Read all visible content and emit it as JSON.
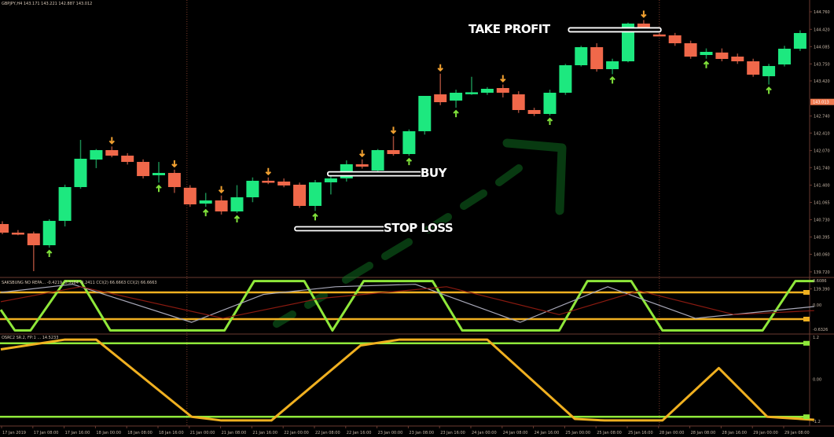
{
  "window": {
    "symbol_header": "GBPJPY,H4  143.171 143.221 142.887 143.012",
    "indicator1_header": "SAKSBUNG NO REPA... -0.4219 -0.3184 -0.2411  CCI(2) 66.6663  CCI(2) 66.6663",
    "indicator2_header": "OSRC2 SR.2, FP:1 ... 14.5233"
  },
  "annotations": {
    "take_profit": "TAKE PROFIT",
    "buy": "BUY",
    "stop_loss": "STOP LOSS"
  },
  "colors": {
    "bull": "#1de87f",
    "bear": "#f0684a",
    "down_arrow": "#f0a030",
    "up_arrow": "#7fe03a",
    "osc_line": "#8fe83a",
    "level_line": "#f0b020",
    "grid_sep": "#7a3a2a",
    "axis": "#6a3a30",
    "price_tag": "#f07a50"
  },
  "chart_data": [
    {
      "type": "candlestick",
      "title": "",
      "price_axis_ticks": [
        "144.760",
        "144.420",
        "144.085",
        "143.750",
        "143.420",
        "142.740",
        "142.410",
        "142.070",
        "141.740",
        "141.400",
        "141.065",
        "140.730",
        "140.395",
        "140.060",
        "139.720",
        "139.390"
      ],
      "current_price": "143.013",
      "time_axis_ticks": [
        "17 Jan 2019",
        "17 Jan 08:00",
        "17 Jan 16:00",
        "18 Jan 00:00",
        "18 Jan 08:00",
        "18 Jan 16:00",
        "21 Jan 00:00",
        "21 Jan 08:00",
        "21 Jan 16:00",
        "22 Jan 00:00",
        "22 Jan 08:00",
        "22 Jan 16:00",
        "23 Jan 00:00",
        "23 Jan 08:00",
        "23 Jan 16:00",
        "24 Jan 00:00",
        "24 Jan 08:00",
        "24 Jan 16:00",
        "25 Jan 00:00",
        "25 Jan 08:00",
        "25 Jan 16:00",
        "28 Jan 00:00",
        "28 Jan 08:00",
        "28 Jan 16:00",
        "29 Jan 00:00",
        "29 Jan 08:00"
      ],
      "ohlc": [
        [
          140.647,
          140.7,
          140.45,
          140.48
        ],
        [
          140.48,
          140.53,
          140.43,
          140.47
        ],
        [
          140.465,
          140.5,
          139.734,
          140.236
        ],
        [
          140.236,
          140.74,
          140.19,
          140.708
        ],
        [
          140.708,
          141.41,
          140.6,
          141.363
        ],
        [
          141.363,
          142.277,
          141.33,
          141.912
        ],
        [
          141.896,
          142.1,
          141.73,
          142.079
        ],
        [
          142.079,
          142.15,
          141.94,
          141.972
        ],
        [
          141.972,
          142.02,
          141.8,
          141.851
        ],
        [
          141.851,
          141.9,
          141.53,
          141.576
        ],
        [
          141.592,
          141.85,
          141.45,
          141.637
        ],
        [
          141.637,
          141.7,
          141.25,
          141.363
        ],
        [
          141.35,
          141.4,
          140.98,
          141.028
        ],
        [
          141.043,
          141.25,
          140.98,
          141.104
        ],
        [
          141.104,
          141.2,
          140.83,
          140.891
        ],
        [
          140.891,
          141.4,
          140.86,
          141.165
        ],
        [
          141.165,
          141.55,
          141.07,
          141.485
        ],
        [
          141.485,
          141.55,
          141.42,
          141.455
        ],
        [
          141.47,
          141.53,
          141.36,
          141.394
        ],
        [
          141.409,
          141.45,
          140.96,
          140.998
        ],
        [
          140.998,
          141.5,
          140.9,
          141.455
        ],
        [
          141.455,
          141.6,
          141.22,
          141.531
        ],
        [
          141.531,
          141.88,
          141.47,
          141.805
        ],
        [
          141.805,
          141.9,
          141.72,
          141.759
        ],
        [
          141.683,
          142.1,
          141.65,
          142.079
        ],
        [
          142.079,
          142.35,
          141.97,
          142.003
        ],
        [
          142.003,
          142.48,
          141.97,
          142.445
        ],
        [
          142.445,
          143.13,
          142.38,
          143.13
        ],
        [
          143.16,
          143.56,
          142.95,
          143.008
        ],
        [
          143.039,
          143.25,
          142.9,
          143.191
        ],
        [
          143.19,
          143.5,
          143.15,
          143.2
        ],
        [
          143.191,
          143.3,
          143.15,
          143.267
        ],
        [
          143.282,
          143.35,
          143.1,
          143.191
        ],
        [
          143.16,
          143.22,
          142.8,
          142.856
        ],
        [
          142.856,
          142.9,
          142.74,
          142.78
        ],
        [
          142.78,
          143.25,
          142.75,
          143.191
        ],
        [
          143.191,
          143.75,
          143.15,
          143.724
        ],
        [
          143.724,
          144.1,
          143.7,
          144.074
        ],
        [
          144.074,
          144.15,
          143.6,
          143.648
        ],
        [
          143.648,
          143.85,
          143.55,
          143.8
        ],
        [
          143.8,
          144.55,
          143.78,
          144.531
        ],
        [
          144.531,
          144.6,
          144.4,
          144.455
        ],
        [
          144.32,
          144.35,
          144.3,
          144.318
        ],
        [
          144.303,
          144.35,
          144.1,
          144.15
        ],
        [
          144.15,
          144.2,
          143.85,
          143.891
        ],
        [
          143.922,
          144.05,
          143.85,
          143.983
        ],
        [
          143.97,
          144.05,
          143.8,
          143.846
        ],
        [
          143.891,
          143.95,
          143.75,
          143.8
        ],
        [
          143.8,
          143.85,
          143.5,
          143.541
        ],
        [
          143.511,
          143.75,
          143.35,
          143.709
        ],
        [
          143.739,
          144.1,
          143.7,
          144.044
        ],
        [
          144.044,
          144.4,
          144.0,
          144.348
        ]
      ],
      "sell_signal_bars": [
        7,
        11,
        14,
        17,
        23,
        25,
        28,
        32,
        41
      ],
      "buy_signal_bars": [
        3,
        10,
        13,
        15,
        20,
        26,
        29,
        35,
        39,
        45,
        49
      ],
      "levels": [
        {
          "label_key": "take_profit",
          "price": 144.41,
          "from_bar": 36.2,
          "to_bar": 42.1
        },
        {
          "label_key": "buy",
          "price": 141.62,
          "from_bar": 20.8,
          "to_bar": 26.8
        },
        {
          "label_key": "stop_loss",
          "price": 140.556,
          "from_bar": 18.7,
          "to_bar": 24.5
        }
      ],
      "day_separator_bars": [
        11.8,
        42.0
      ]
    },
    {
      "type": "line",
      "title": "",
      "axis_ticks": [
        "0.6086",
        "0.00",
        "-0.6326"
      ],
      "ylim": [
        -0.66,
        0.66
      ],
      "levels": [
        0.33,
        -0.33
      ],
      "series": [
        {
          "points": [
            [
              -0.1,
              -0.1
            ],
            [
              0.8,
              -0.61
            ],
            [
              1.8,
              -0.61
            ],
            [
              4.0,
              0.61
            ],
            [
              5.0,
              0.61
            ],
            [
              6.9,
              -0.61
            ],
            [
              14.2,
              -0.61
            ],
            [
              16.1,
              0.61
            ],
            [
              19.3,
              0.61
            ],
            [
              21.1,
              -0.61
            ],
            [
              23.1,
              0.61
            ],
            [
              27.5,
              0.61
            ],
            [
              29.4,
              -0.61
            ],
            [
              35.6,
              -0.61
            ],
            [
              37.4,
              0.61
            ],
            [
              40.2,
              0.61
            ],
            [
              42.2,
              -0.61
            ],
            [
              48.6,
              -0.61
            ],
            [
              50.7,
              0.61
            ],
            [
              51.9,
              0.61
            ]
          ]
        },
        {
          "points": [
            [
              -0.1,
              0.33
            ],
            [
              4.5,
              0.53
            ],
            [
              12.1,
              -0.41
            ],
            [
              16.7,
              0.28
            ],
            [
              21.3,
              0.47
            ],
            [
              26.4,
              0.53
            ],
            [
              33.1,
              -0.41
            ],
            [
              38.7,
              0.47
            ],
            [
              44.3,
              -0.31
            ],
            [
              51.9,
              -0.02
            ]
          ]
        },
        {
          "points": [
            [
              -0.1,
              0.1
            ],
            [
              5.0,
              0.47
            ],
            [
              14.1,
              -0.31
            ],
            [
              20.3,
              0.18
            ],
            [
              28.4,
              0.47
            ],
            [
              35.6,
              -0.22
            ],
            [
              40.7,
              0.37
            ],
            [
              46.8,
              -0.22
            ],
            [
              51.9,
              -0.12
            ]
          ]
        }
      ]
    },
    {
      "type": "line",
      "title": "",
      "axis_ticks": [
        "1.2",
        "0.00",
        "-1.2"
      ],
      "ylim": [
        -1.45,
        1.45
      ],
      "levels": [
        1.2,
        -1.2
      ],
      "series": [
        {
          "points": [
            [
              -0.1,
              1.0
            ],
            [
              4.0,
              1.32
            ],
            [
              6.0,
              1.32
            ],
            [
              12.1,
              -1.2
            ],
            [
              14.0,
              -1.32
            ],
            [
              17.2,
              -1.32
            ],
            [
              22.9,
              1.13
            ],
            [
              25.4,
              1.32
            ],
            [
              31.0,
              1.32
            ],
            [
              36.6,
              -1.27
            ],
            [
              38.5,
              -1.32
            ],
            [
              42.2,
              -1.32
            ],
            [
              45.8,
              0.39
            ],
            [
              48.9,
              -1.2
            ],
            [
              51.9,
              -1.3
            ]
          ]
        }
      ]
    }
  ]
}
